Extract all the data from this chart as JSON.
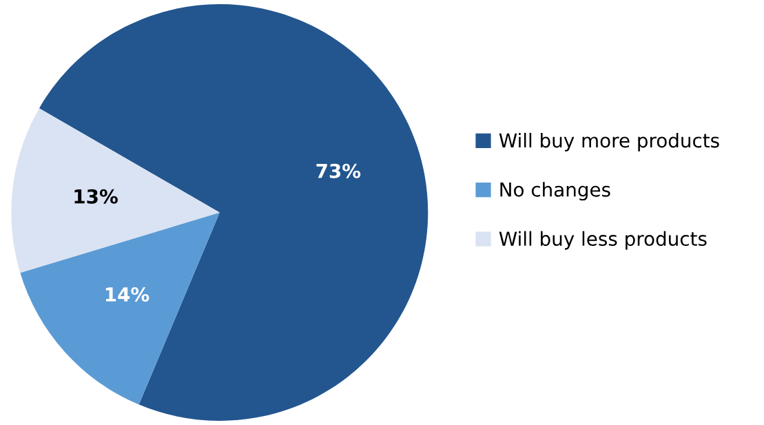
{
  "chart_data": {
    "type": "pie",
    "categories": [
      "Will buy more products",
      "No changes",
      "Will buy less products"
    ],
    "values": [
      73,
      14,
      13
    ],
    "colors": [
      "#23568f",
      "#5b9bd5",
      "#dae3f3"
    ],
    "value_labels": [
      "73%",
      "14%",
      "13%"
    ],
    "legend": "right"
  }
}
